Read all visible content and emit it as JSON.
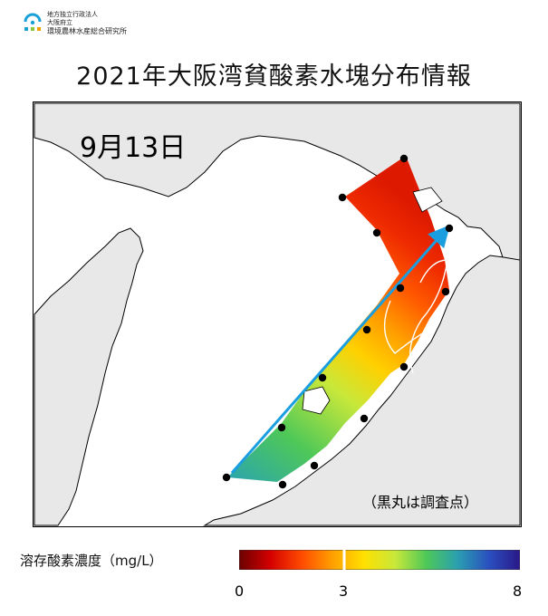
{
  "logo": {
    "line1": "地方独立行政法人",
    "line2": "大阪府立",
    "line3": "環境農林水産総合研究所"
  },
  "title": "2021年大阪湾貧酸素水塊分布情報",
  "map": {
    "date": "9月13日",
    "note": "（黒丸は調査点）"
  },
  "legend": {
    "label": "溶存酸素濃度（mg/L）",
    "ticks": [
      "0",
      "3",
      "8"
    ],
    "colors": [
      "#6a0000",
      "#d40000",
      "#ff4a00",
      "#ffa000",
      "#ffe000",
      "#c8e83a",
      "#4ec858",
      "#2a9fb0",
      "#2a50c0",
      "#2a1888"
    ]
  }
}
